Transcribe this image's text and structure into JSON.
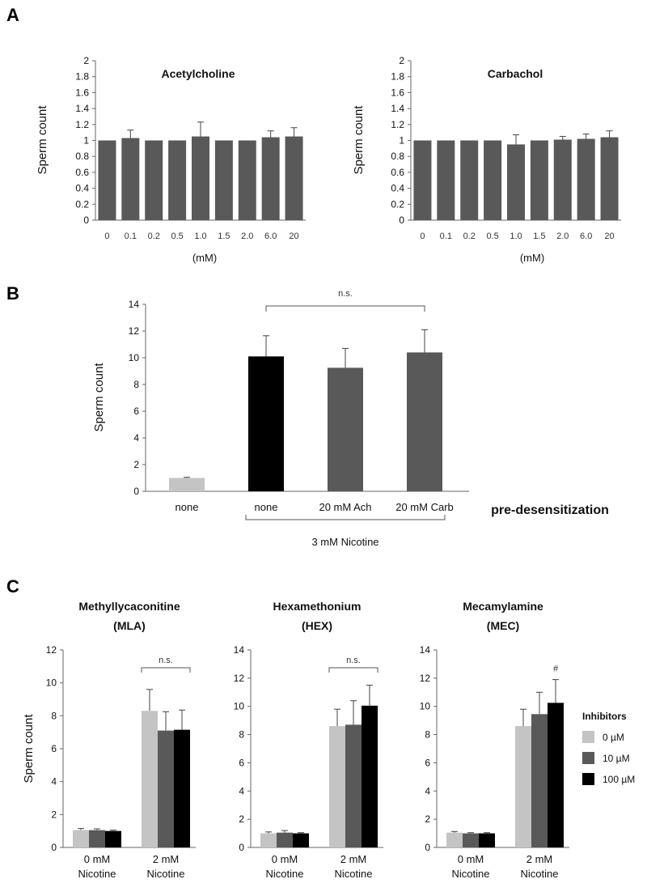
{
  "panels": {
    "a": "A",
    "b": "B",
    "c": "C"
  },
  "colors": {
    "light": "#c4c4c4",
    "dark": "#595959",
    "black": "#000000",
    "axis": "#666666"
  },
  "chart_data": [
    {
      "id": "A1",
      "type": "bar",
      "title": "Acetylcholine",
      "ylabel": "Sperm count",
      "xlabel": "(mM)",
      "ylim": [
        0,
        2
      ],
      "yticks": [
        "0",
        "0.2",
        "0.4",
        "0.6",
        "0.8",
        "1",
        "1.2",
        "1.4",
        "1.6",
        "1.8",
        "2"
      ],
      "categories": [
        "0",
        "0.1",
        "0.2",
        "0.5",
        "1.0",
        "1.5",
        "2.0",
        "6.0",
        "20"
      ],
      "values": [
        1.0,
        1.03,
        1.0,
        1.0,
        1.05,
        1.0,
        1.0,
        1.04,
        1.05
      ],
      "errors": [
        0.0,
        0.1,
        0.0,
        0.0,
        0.18,
        0.0,
        0.0,
        0.08,
        0.11
      ]
    },
    {
      "id": "A2",
      "type": "bar",
      "title": "Carbachol",
      "ylabel": "Sperm count",
      "xlabel": "(mM)",
      "ylim": [
        0,
        2
      ],
      "yticks": [
        "0",
        "0.2",
        "0.4",
        "0.6",
        "0.8",
        "1",
        "1.2",
        "1.4",
        "1.6",
        "1.8",
        "2"
      ],
      "categories": [
        "0",
        "0.1",
        "0.2",
        "0.5",
        "1.0",
        "1.5",
        "2.0",
        "6.0",
        "20"
      ],
      "values": [
        1.0,
        1.0,
        1.0,
        1.0,
        0.95,
        1.0,
        1.01,
        1.02,
        1.04
      ],
      "errors": [
        0.0,
        0.0,
        0.0,
        0.0,
        0.12,
        0.0,
        0.04,
        0.06,
        0.08
      ]
    },
    {
      "id": "B",
      "type": "bar",
      "ylabel": "Sperm count",
      "ylim": [
        0,
        14
      ],
      "yticks": [
        "0",
        "2",
        "4",
        "6",
        "8",
        "10",
        "12",
        "14"
      ],
      "categories": [
        "none",
        "none",
        "20 mM Ach",
        "20 mM Carb"
      ],
      "values": [
        1.0,
        10.1,
        9.25,
        10.4
      ],
      "errors": [
        0.05,
        1.55,
        1.45,
        1.7
      ],
      "bar_colors": [
        "light",
        "black",
        "dark",
        "dark"
      ],
      "axis_caption": "pre-desensitization",
      "group_caption": "3 mM Nicotine",
      "significance": "n.s."
    },
    {
      "id": "C1",
      "type": "bar",
      "title": "Methyllycaconitine",
      "subtitle": "(MLA)",
      "ylabel": "Sperm count",
      "ylim": [
        0,
        12
      ],
      "yticks": [
        "0",
        "2",
        "4",
        "6",
        "8",
        "10",
        "12"
      ],
      "categories": [
        [
          "0 mM",
          "Nicotine"
        ],
        [
          "2 mM",
          "Nicotine"
        ]
      ],
      "series": [
        {
          "name": "0 µM",
          "values": [
            1.05,
            8.3
          ],
          "errors": [
            0.1,
            1.3
          ]
        },
        {
          "name": "10 µM",
          "values": [
            1.05,
            7.1
          ],
          "errors": [
            0.08,
            1.15
          ]
        },
        {
          "name": "100 µM",
          "values": [
            1.0,
            7.15
          ],
          "errors": [
            0.05,
            1.2
          ]
        }
      ],
      "significance": "n.s."
    },
    {
      "id": "C2",
      "type": "bar",
      "title": "Hexamethonium",
      "subtitle": "(HEX)",
      "ylim": [
        0,
        14
      ],
      "yticks": [
        "0",
        "2",
        "4",
        "6",
        "8",
        "10",
        "12",
        "14"
      ],
      "categories": [
        [
          "0 mM",
          "Nicotine"
        ],
        [
          "2 mM",
          "Nicotine"
        ]
      ],
      "series": [
        {
          "name": "0 µM",
          "values": [
            1.0,
            8.6
          ],
          "errors": [
            0.1,
            1.2
          ]
        },
        {
          "name": "10 µM",
          "values": [
            1.05,
            8.7
          ],
          "errors": [
            0.15,
            1.7
          ]
        },
        {
          "name": "100 µM",
          "values": [
            1.0,
            10.05
          ],
          "errors": [
            0.05,
            1.45
          ]
        }
      ],
      "significance": "n.s."
    },
    {
      "id": "C3",
      "type": "bar",
      "title": "Mecamylamine",
      "subtitle": "(MEC)",
      "ylim": [
        0,
        14
      ],
      "yticks": [
        "0",
        "2",
        "4",
        "6",
        "8",
        "10",
        "12",
        "14"
      ],
      "categories": [
        [
          "0 mM",
          "Nicotine"
        ],
        [
          "2 mM",
          "Nicotine"
        ]
      ],
      "series": [
        {
          "name": "0 µM",
          "values": [
            1.05,
            8.6
          ],
          "errors": [
            0.08,
            1.2
          ]
        },
        {
          "name": "10 µM",
          "values": [
            1.0,
            9.45
          ],
          "errors": [
            0.05,
            1.55
          ]
        },
        {
          "name": "100 µM",
          "values": [
            1.0,
            10.25
          ],
          "errors": [
            0.05,
            1.65
          ]
        }
      ],
      "significance": "#",
      "legend": {
        "title": "Inhibitors",
        "placement": "right"
      }
    }
  ]
}
